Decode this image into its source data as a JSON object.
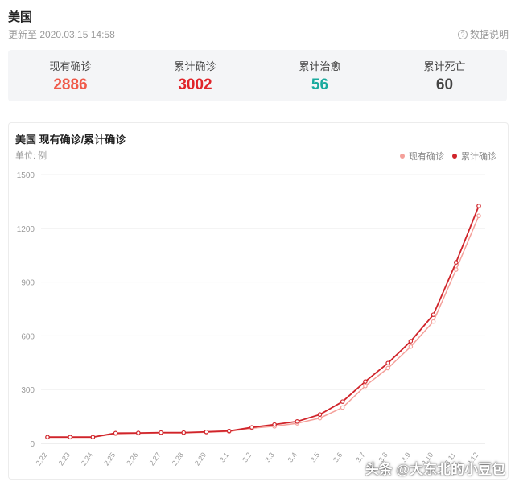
{
  "header": {
    "title": "美国",
    "update_time": "更新至 2020.03.15 14:58",
    "data_note": "数据说明"
  },
  "stats": [
    {
      "label": "现有确诊",
      "value": "2886",
      "color": "#f05a4a"
    },
    {
      "label": "累计确诊",
      "value": "3002",
      "color": "#e0242a"
    },
    {
      "label": "累计治愈",
      "value": "56",
      "color": "#1aaa9e"
    },
    {
      "label": "累计死亡",
      "value": "60",
      "color": "#444444"
    }
  ],
  "chart_data": {
    "type": "line",
    "title": "美国 现有确诊/累计确诊",
    "unit": "单位: 例",
    "categories": [
      "2.22",
      "2.23",
      "2.24",
      "2.25",
      "2.26",
      "2.27",
      "2.28",
      "2.29",
      "3.1",
      "3.2",
      "3.3",
      "3.4",
      "3.5",
      "3.6",
      "3.7",
      "3.8",
      "3.9",
      "3.10",
      "3.11",
      "3.12"
    ],
    "ylim": [
      0,
      1500
    ],
    "yticks": [
      0,
      300,
      600,
      900,
      1200,
      1500
    ],
    "series": [
      {
        "name": "现有确诊",
        "color": "#f4a09a",
        "values": [
          34,
          34,
          34,
          53,
          56,
          58,
          58,
          62,
          66,
          84,
          95,
          112,
          141,
          200,
          320,
          420,
          540,
          680,
          970,
          1270
        ]
      },
      {
        "name": "累计确诊",
        "color": "#d0242a",
        "values": [
          35,
          35,
          35,
          57,
          58,
          60,
          60,
          64,
          69,
          89,
          105,
          122,
          161,
          233,
          345,
          448,
          570,
          718,
          1010,
          1325
        ]
      }
    ],
    "legend_position": "top-right",
    "grid": true
  },
  "watermark": "头条 @大东北的小豆包"
}
